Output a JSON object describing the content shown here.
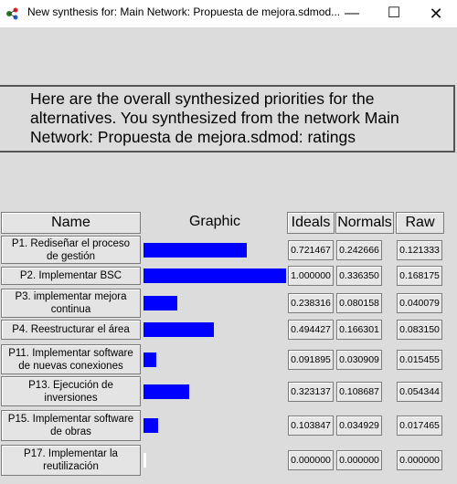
{
  "window": {
    "title": "New synthesis for: Main Network: Propuesta de mejora.sdmod...",
    "minimize_glyph": "—",
    "maximize_glyph": "☐",
    "close_glyph": "✕",
    "icon": "superdecisions-app-icon"
  },
  "message": {
    "lines": [
      "Here are the overall synthesized priorities for the",
      "alternatives.  You synthesized from the network Main",
      "Network: Propuesta de mejora.sdmod: ratings"
    ]
  },
  "table": {
    "headers": {
      "name": "Name",
      "graphic": "Graphic",
      "ideals": "Ideals",
      "normals": "Normals",
      "raw": "Raw"
    },
    "bar_color": "#0000ff",
    "rows": [
      {
        "name": "P1. Rediseñar el proceso de gestión",
        "ideal": 0.721467,
        "ideals": "0.721467",
        "normals": "0.242666",
        "raw": "0.121333"
      },
      {
        "name": "P2. Implementar BSC",
        "ideal": 1.0,
        "ideals": "1.000000",
        "normals": "0.336350",
        "raw": "0.168175"
      },
      {
        "name": "P3. implementar mejora continua",
        "ideal": 0.238316,
        "ideals": "0.238316",
        "normals": "0.080158",
        "raw": "0.040079"
      },
      {
        "name": "P4. Reestructurar el área",
        "ideal": 0.494427,
        "ideals": "0.494427",
        "normals": "0.166301",
        "raw": "0.083150"
      },
      {
        "name": "P11. Implementar software de nuevas conexiones",
        "ideal": 0.091895,
        "ideals": "0.091895",
        "normals": "0.030909",
        "raw": "0.015455"
      },
      {
        "name": "P13. Ejecución de inversiones",
        "ideal": 0.323137,
        "ideals": "0.323137",
        "normals": "0.108687",
        "raw": "0.054344"
      },
      {
        "name": "P15. Implementar software de obras",
        "ideal": 0.103847,
        "ideals": "0.103847",
        "normals": "0.034929",
        "raw": "0.017465"
      },
      {
        "name": "P17. Implementar la reutilización",
        "ideal": 0.0,
        "ideals": "0.000000",
        "normals": "0.000000",
        "raw": "0.000000"
      }
    ]
  }
}
